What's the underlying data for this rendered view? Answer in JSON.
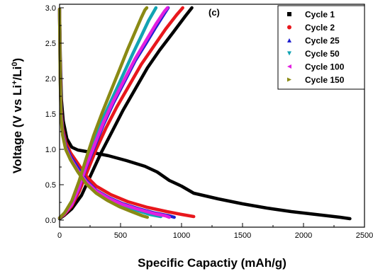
{
  "chart_data": {
    "type": "scatter",
    "panel_label": "(c)",
    "xlabel": "Specific Capactiy (mAh/g)",
    "ylabel": {
      "main": "Voltage (V vs Li",
      "sup1": "+",
      "mid": "/Li",
      "sup2": "0",
      "end": ")"
    },
    "xlim": [
      0,
      2500
    ],
    "ylim": [
      -0.1,
      3.05
    ],
    "xticks": [
      "0",
      "500",
      "1000",
      "1500",
      "2000",
      "2500"
    ],
    "yticks": [
      "0.0",
      "0.5",
      "1.0",
      "1.5",
      "2.0",
      "2.5",
      "3.0"
    ],
    "legend_position": "top-right",
    "series": [
      {
        "name": "Cycle 1",
        "color": "#000000",
        "marker": "square",
        "discharge": [
          [
            0,
            2.98
          ],
          [
            6,
            2.3
          ],
          [
            15,
            1.7
          ],
          [
            30,
            1.4
          ],
          [
            60,
            1.15
          ],
          [
            100,
            1.03
          ],
          [
            150,
            0.99
          ],
          [
            250,
            0.96
          ],
          [
            400,
            0.91
          ],
          [
            550,
            0.84
          ],
          [
            700,
            0.76
          ],
          [
            800,
            0.68
          ],
          [
            900,
            0.56
          ],
          [
            1000,
            0.48
          ],
          [
            1100,
            0.38
          ],
          [
            1300,
            0.3
          ],
          [
            1500,
            0.23
          ],
          [
            1700,
            0.17
          ],
          [
            1900,
            0.12
          ],
          [
            2100,
            0.08
          ],
          [
            2300,
            0.04
          ],
          [
            2380,
            0.02
          ]
        ],
        "charge": [
          [
            0,
            0.02
          ],
          [
            40,
            0.07
          ],
          [
            100,
            0.16
          ],
          [
            180,
            0.35
          ],
          [
            260,
            0.65
          ],
          [
            340,
            0.95
          ],
          [
            430,
            1.25
          ],
          [
            520,
            1.55
          ],
          [
            620,
            1.85
          ],
          [
            720,
            2.15
          ],
          [
            820,
            2.4
          ],
          [
            930,
            2.65
          ],
          [
            1030,
            2.88
          ],
          [
            1085,
            3.0
          ]
        ]
      },
      {
        "name": "Cycle 2",
        "color": "#e8171c",
        "marker": "circle",
        "discharge": [
          [
            0,
            2.98
          ],
          [
            5,
            2.2
          ],
          [
            12,
            1.6
          ],
          [
            25,
            1.3
          ],
          [
            50,
            1.1
          ],
          [
            90,
            0.95
          ],
          [
            150,
            0.8
          ],
          [
            220,
            0.62
          ],
          [
            300,
            0.48
          ],
          [
            420,
            0.36
          ],
          [
            560,
            0.26
          ],
          [
            720,
            0.18
          ],
          [
            880,
            0.12
          ],
          [
            1000,
            0.08
          ],
          [
            1100,
            0.05
          ]
        ],
        "charge": [
          [
            0,
            0.03
          ],
          [
            40,
            0.08
          ],
          [
            100,
            0.2
          ],
          [
            160,
            0.4
          ],
          [
            230,
            0.7
          ],
          [
            300,
            1.0
          ],
          [
            380,
            1.3
          ],
          [
            470,
            1.6
          ],
          [
            570,
            1.9
          ],
          [
            670,
            2.2
          ],
          [
            770,
            2.45
          ],
          [
            870,
            2.7
          ],
          [
            960,
            2.9
          ],
          [
            1010,
            3.0
          ]
        ]
      },
      {
        "name": "Cycle 25",
        "color": "#1f1fcf",
        "marker": "triangle-up",
        "discharge": [
          [
            0,
            2.98
          ],
          [
            5,
            2.1
          ],
          [
            12,
            1.55
          ],
          [
            25,
            1.25
          ],
          [
            50,
            1.05
          ],
          [
            90,
            0.9
          ],
          [
            150,
            0.74
          ],
          [
            220,
            0.56
          ],
          [
            300,
            0.42
          ],
          [
            400,
            0.32
          ],
          [
            520,
            0.23
          ],
          [
            650,
            0.16
          ],
          [
            780,
            0.1
          ],
          [
            900,
            0.06
          ],
          [
            940,
            0.04
          ]
        ],
        "charge": [
          [
            0,
            0.03
          ],
          [
            40,
            0.09
          ],
          [
            100,
            0.22
          ],
          [
            160,
            0.45
          ],
          [
            220,
            0.75
          ],
          [
            290,
            1.05
          ],
          [
            360,
            1.35
          ],
          [
            440,
            1.65
          ],
          [
            530,
            1.95
          ],
          [
            620,
            2.25
          ],
          [
            710,
            2.5
          ],
          [
            790,
            2.73
          ],
          [
            860,
            2.92
          ],
          [
            890,
            3.0
          ]
        ]
      },
      {
        "name": "Cycle 50",
        "color": "#12a3b3",
        "marker": "triangle-down",
        "discharge": [
          [
            0,
            2.98
          ],
          [
            5,
            2.05
          ],
          [
            12,
            1.5
          ],
          [
            25,
            1.22
          ],
          [
            50,
            1.02
          ],
          [
            90,
            0.87
          ],
          [
            150,
            0.7
          ],
          [
            220,
            0.53
          ],
          [
            300,
            0.4
          ],
          [
            400,
            0.3
          ],
          [
            510,
            0.21
          ],
          [
            630,
            0.14
          ],
          [
            740,
            0.08
          ],
          [
            830,
            0.05
          ]
        ],
        "charge": [
          [
            0,
            0.03
          ],
          [
            40,
            0.1
          ],
          [
            100,
            0.25
          ],
          [
            160,
            0.5
          ],
          [
            220,
            0.82
          ],
          [
            290,
            1.15
          ],
          [
            360,
            1.45
          ],
          [
            440,
            1.75
          ],
          [
            520,
            2.05
          ],
          [
            600,
            2.35
          ],
          [
            670,
            2.6
          ],
          [
            730,
            2.82
          ],
          [
            780,
            2.97
          ],
          [
            790,
            3.0
          ]
        ]
      },
      {
        "name": "Cycle 100",
        "color": "#e21fe0",
        "marker": "triangle-left",
        "discharge": [
          [
            0,
            2.98
          ],
          [
            5,
            2.05
          ],
          [
            12,
            1.5
          ],
          [
            25,
            1.22
          ],
          [
            50,
            1.02
          ],
          [
            90,
            0.87
          ],
          [
            150,
            0.7
          ],
          [
            220,
            0.54
          ],
          [
            300,
            0.41
          ],
          [
            400,
            0.31
          ],
          [
            520,
            0.22
          ],
          [
            650,
            0.15
          ],
          [
            780,
            0.09
          ],
          [
            870,
            0.06
          ],
          [
            900,
            0.04
          ]
        ],
        "charge": [
          [
            0,
            0.03
          ],
          [
            40,
            0.09
          ],
          [
            100,
            0.22
          ],
          [
            160,
            0.46
          ],
          [
            220,
            0.77
          ],
          [
            290,
            1.08
          ],
          [
            360,
            1.38
          ],
          [
            440,
            1.68
          ],
          [
            530,
            1.98
          ],
          [
            620,
            2.28
          ],
          [
            710,
            2.54
          ],
          [
            790,
            2.77
          ],
          [
            860,
            2.95
          ],
          [
            885,
            3.0
          ]
        ]
      },
      {
        "name": "Cycle 150",
        "color": "#8a8a14",
        "marker": "triangle-right",
        "discharge": [
          [
            0,
            2.98
          ],
          [
            5,
            2.0
          ],
          [
            12,
            1.45
          ],
          [
            25,
            1.2
          ],
          [
            50,
            1.0
          ],
          [
            90,
            0.85
          ],
          [
            150,
            0.68
          ],
          [
            220,
            0.51
          ],
          [
            300,
            0.38
          ],
          [
            390,
            0.28
          ],
          [
            490,
            0.19
          ],
          [
            590,
            0.12
          ],
          [
            680,
            0.06
          ],
          [
            720,
            0.04
          ]
        ],
        "charge": [
          [
            0,
            0.03
          ],
          [
            40,
            0.1
          ],
          [
            100,
            0.27
          ],
          [
            160,
            0.55
          ],
          [
            220,
            0.88
          ],
          [
            280,
            1.2
          ],
          [
            350,
            1.52
          ],
          [
            420,
            1.82
          ],
          [
            490,
            2.12
          ],
          [
            560,
            2.42
          ],
          [
            620,
            2.66
          ],
          [
            670,
            2.86
          ],
          [
            700,
            2.97
          ],
          [
            715,
            3.0
          ]
        ]
      }
    ]
  }
}
